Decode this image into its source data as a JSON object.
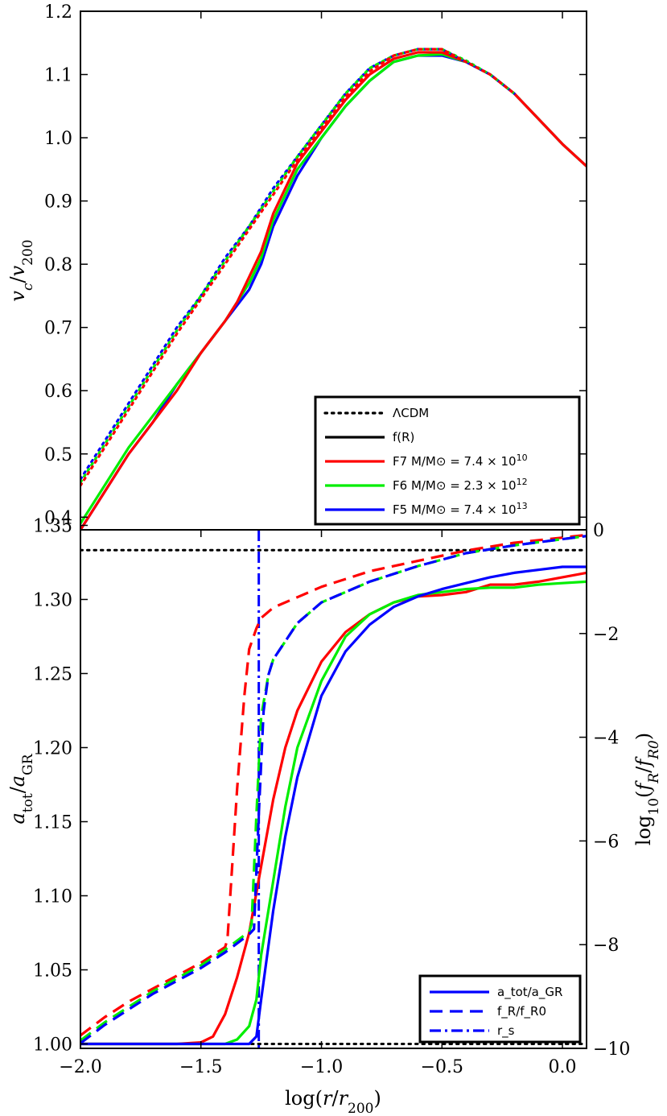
{
  "chart_data": [
    {
      "type": "line",
      "panel": "top",
      "ylabel": "v_c/v_200",
      "ylim": [
        0.38,
        1.2
      ],
      "xlim": [
        -2.0,
        0.1
      ],
      "yticks": [
        "0.4",
        "0.5",
        "0.6",
        "0.7",
        "0.8",
        "0.9",
        "1.0",
        "1.1",
        "1.2"
      ],
      "legend": {
        "position": "lower-right",
        "entries": [
          {
            "style": "dotted",
            "color": "#000000",
            "label": "ΛCDM"
          },
          {
            "style": "solid",
            "color": "#000000",
            "label": "f(R)"
          },
          {
            "style": "solid",
            "color": "#ff0000",
            "label": "F7 M/M⊙ = 7.4 × 10^10"
          },
          {
            "style": "solid",
            "color": "#00ee00",
            "label": "F6 M/M⊙ = 2.3 × 10^12"
          },
          {
            "style": "solid",
            "color": "#0000ff",
            "label": "F5 M/M⊙ = 7.4 × 10^13"
          }
        ]
      },
      "series": [
        {
          "name": "F5 f(R)",
          "color": "#0000ff",
          "dash": "solid",
          "x": [
            -2.0,
            -1.9,
            -1.8,
            -1.7,
            -1.6,
            -1.5,
            -1.4,
            -1.3,
            -1.25,
            -1.2,
            -1.1,
            -1.0,
            -0.9,
            -0.8,
            -0.7,
            -0.6,
            -0.5,
            -0.4,
            -0.3,
            -0.2,
            -0.1,
            0.0,
            0.1
          ],
          "y": [
            0.38,
            0.44,
            0.5,
            0.55,
            0.61,
            0.66,
            0.71,
            0.76,
            0.8,
            0.86,
            0.94,
            1.0,
            1.05,
            1.09,
            1.12,
            1.13,
            1.13,
            1.12,
            1.1,
            1.07,
            1.03,
            0.99,
            0.955
          ]
        },
        {
          "name": "F6 f(R)",
          "color": "#00ee00",
          "dash": "solid",
          "x": [
            -2.0,
            -1.9,
            -1.8,
            -1.7,
            -1.6,
            -1.5,
            -1.4,
            -1.3,
            -1.25,
            -1.2,
            -1.1,
            -1.0,
            -0.9,
            -0.8,
            -0.7,
            -0.6,
            -0.5,
            -0.4,
            -0.3,
            -0.2,
            -0.1,
            0.0,
            0.1
          ],
          "y": [
            0.39,
            0.45,
            0.51,
            0.56,
            0.61,
            0.66,
            0.71,
            0.77,
            0.81,
            0.87,
            0.95,
            1.0,
            1.05,
            1.09,
            1.12,
            1.13,
            1.132,
            1.12,
            1.1,
            1.07,
            1.03,
            0.99,
            0.955
          ]
        },
        {
          "name": "F7 f(R)",
          "color": "#ff0000",
          "dash": "solid",
          "x": [
            -2.0,
            -1.9,
            -1.8,
            -1.7,
            -1.6,
            -1.5,
            -1.4,
            -1.35,
            -1.3,
            -1.25,
            -1.2,
            -1.1,
            -1.0,
            -0.9,
            -0.8,
            -0.7,
            -0.6,
            -0.5,
            -0.4,
            -0.3,
            -0.2,
            -0.1,
            0.0,
            0.1
          ],
          "y": [
            0.38,
            0.44,
            0.5,
            0.55,
            0.6,
            0.66,
            0.71,
            0.74,
            0.78,
            0.82,
            0.88,
            0.96,
            1.01,
            1.06,
            1.1,
            1.125,
            1.135,
            1.135,
            1.12,
            1.1,
            1.07,
            1.03,
            0.99,
            0.955
          ]
        },
        {
          "name": "F5 ΛCDM",
          "color": "#0000ff",
          "dash": "dotted",
          "x": [
            -2.0,
            -1.9,
            -1.8,
            -1.7,
            -1.6,
            -1.5,
            -1.4,
            -1.3,
            -1.2,
            -1.1,
            -1.0,
            -0.9,
            -0.8,
            -0.7,
            -0.6,
            -0.5,
            -0.4,
            -0.3,
            -0.2
          ],
          "y": [
            0.46,
            0.52,
            0.58,
            0.64,
            0.7,
            0.75,
            0.81,
            0.86,
            0.92,
            0.97,
            1.02,
            1.07,
            1.11,
            1.13,
            1.14,
            1.14,
            1.12,
            1.1,
            1.07
          ]
        },
        {
          "name": "F6 ΛCDM",
          "color": "#00ee00",
          "dash": "dotted",
          "x": [
            -2.0,
            -1.9,
            -1.8,
            -1.7,
            -1.6,
            -1.5,
            -1.4,
            -1.3,
            -1.2,
            -1.1,
            -1.0,
            -0.9,
            -0.8,
            -0.7,
            -0.6,
            -0.5,
            -0.4,
            -0.3,
            -0.2
          ],
          "y": [
            0.455,
            0.515,
            0.575,
            0.635,
            0.695,
            0.75,
            0.805,
            0.86,
            0.915,
            0.97,
            1.02,
            1.07,
            1.11,
            1.13,
            1.14,
            1.14,
            1.122,
            1.1,
            1.07
          ]
        },
        {
          "name": "F7 ΛCDM",
          "color": "#ff0000",
          "dash": "dotted",
          "x": [
            -2.0,
            -1.9,
            -1.8,
            -1.7,
            -1.6,
            -1.5,
            -1.4,
            -1.3,
            -1.2,
            -1.1,
            -1.0,
            -0.9,
            -0.8,
            -0.7,
            -0.6,
            -0.5,
            -0.4,
            -0.3,
            -0.2
          ],
          "y": [
            0.45,
            0.51,
            0.57,
            0.63,
            0.69,
            0.745,
            0.8,
            0.855,
            0.91,
            0.965,
            1.015,
            1.065,
            1.105,
            1.13,
            1.14,
            1.14,
            1.12,
            1.1,
            1.07
          ]
        }
      ]
    },
    {
      "type": "line",
      "panel": "bottom",
      "xlabel": "log(r/r_200)",
      "ylabel": "a_tot/a_GR",
      "ylabel_right": "log10(f_R/f_R0)",
      "xlim": [
        -2.0,
        0.1
      ],
      "ylim": [
        0.997,
        1.347
      ],
      "ylim_right": [
        -10,
        0
      ],
      "xticks": [
        "−2.0",
        "−1.5",
        "−1.0",
        "−0.5",
        "0.0"
      ],
      "yticks": [
        "1.00",
        "1.05",
        "1.10",
        "1.15",
        "1.20",
        "1.25",
        "1.30",
        "1.35"
      ],
      "yticks_right": [
        "−10",
        "−8",
        "−6",
        "−4",
        "−2",
        "0"
      ],
      "legend": {
        "position": "lower-right",
        "entries": [
          {
            "style": "solid",
            "color": "#0000ff",
            "label": "a_tot/a_GR"
          },
          {
            "style": "dashed",
            "color": "#0000ff",
            "label": "f_R/f_R0"
          },
          {
            "style": "dashdot",
            "color": "#0000ff",
            "label": "r_s"
          }
        ]
      },
      "reference_lines": [
        {
          "axis": "y",
          "value": 1.0,
          "style": "dotted",
          "color": "#000000"
        },
        {
          "axis": "y",
          "value": 1.3333,
          "style": "dotted",
          "color": "#000000"
        },
        {
          "axis": "x",
          "value": -1.26,
          "style": "dashdot",
          "color": "#0000ff",
          "label": "r_s"
        }
      ],
      "series": [
        {
          "name": "F7 a_tot/a_GR",
          "color": "#ff0000",
          "dash": "solid",
          "axis": "left",
          "x": [
            -2.0,
            -1.6,
            -1.5,
            -1.45,
            -1.4,
            -1.35,
            -1.3,
            -1.25,
            -1.2,
            -1.15,
            -1.1,
            -1.0,
            -0.9,
            -0.8,
            -0.7,
            -0.6,
            -0.5,
            -0.4,
            -0.3,
            -0.2,
            -0.1,
            0.0,
            0.1
          ],
          "y": [
            1.0,
            1.0,
            1.001,
            1.005,
            1.02,
            1.045,
            1.075,
            1.12,
            1.165,
            1.2,
            1.225,
            1.258,
            1.278,
            1.29,
            1.298,
            1.302,
            1.303,
            1.305,
            1.31,
            1.31,
            1.312,
            1.315,
            1.318
          ]
        },
        {
          "name": "F6 a_tot/a_GR",
          "color": "#00ee00",
          "dash": "solid",
          "axis": "left",
          "x": [
            -2.0,
            -1.4,
            -1.35,
            -1.3,
            -1.27,
            -1.25,
            -1.2,
            -1.15,
            -1.1,
            -1.0,
            -0.9,
            -0.8,
            -0.7,
            -0.6,
            -0.5,
            -0.4,
            -0.3,
            -0.2,
            -0.1,
            0.0,
            0.1
          ],
          "y": [
            1.0,
            1.0,
            1.003,
            1.012,
            1.03,
            1.06,
            1.11,
            1.16,
            1.2,
            1.245,
            1.275,
            1.29,
            1.298,
            1.303,
            1.305,
            1.307,
            1.308,
            1.308,
            1.31,
            1.311,
            1.312
          ]
        },
        {
          "name": "F5 a_tot/a_GR",
          "color": "#0000ff",
          "dash": "solid",
          "axis": "left",
          "x": [
            -2.0,
            -1.3,
            -1.27,
            -1.25,
            -1.2,
            -1.15,
            -1.1,
            -1.0,
            -0.9,
            -0.8,
            -0.7,
            -0.6,
            -0.5,
            -0.4,
            -0.3,
            -0.2,
            -0.1,
            0.0,
            0.1
          ],
          "y": [
            1.0,
            1.0,
            1.005,
            1.03,
            1.09,
            1.14,
            1.18,
            1.235,
            1.265,
            1.283,
            1.295,
            1.302,
            1.307,
            1.311,
            1.315,
            1.318,
            1.32,
            1.322,
            1.322
          ]
        },
        {
          "name": "F7 f_R/f_R0",
          "color": "#ff0000",
          "dash": "dashed",
          "axis": "right",
          "x": [
            -2.0,
            -1.9,
            -1.8,
            -1.7,
            -1.6,
            -1.5,
            -1.4,
            -1.39,
            -1.35,
            -1.32,
            -1.3,
            -1.27,
            -1.25,
            -1.2,
            -1.1,
            -1.0,
            -0.8,
            -0.6,
            -0.4,
            -0.2,
            0.0,
            0.1
          ],
          "y": [
            -9.75,
            -9.4,
            -9.1,
            -8.85,
            -8.6,
            -8.35,
            -8.05,
            -7.9,
            -5.0,
            -3.2,
            -2.3,
            -1.9,
            -1.7,
            -1.5,
            -1.3,
            -1.1,
            -0.8,
            -0.6,
            -0.4,
            -0.25,
            -0.15,
            -0.1
          ]
        },
        {
          "name": "F6 f_R/f_R0",
          "color": "#00ee00",
          "dash": "dashed",
          "axis": "right",
          "x": [
            -2.0,
            -1.9,
            -1.8,
            -1.7,
            -1.6,
            -1.5,
            -1.4,
            -1.3,
            -1.29,
            -1.27,
            -1.25,
            -1.22,
            -1.2,
            -1.1,
            -1.0,
            -0.8,
            -0.6,
            -0.4,
            -0.2,
            0.0,
            0.1
          ],
          "y": [
            -9.85,
            -9.5,
            -9.2,
            -8.9,
            -8.65,
            -8.4,
            -8.1,
            -7.75,
            -7.6,
            -5.5,
            -3.6,
            -2.8,
            -2.5,
            -1.8,
            -1.4,
            -1.0,
            -0.7,
            -0.45,
            -0.3,
            -0.18,
            -0.12
          ]
        },
        {
          "name": "F5 f_R/f_R0",
          "color": "#0000ff",
          "dash": "dashed",
          "axis": "right",
          "x": [
            -2.0,
            -1.9,
            -1.8,
            -1.7,
            -1.6,
            -1.5,
            -1.4,
            -1.3,
            -1.28,
            -1.26,
            -1.24,
            -1.22,
            -1.2,
            -1.1,
            -1.0,
            -0.8,
            -0.6,
            -0.4,
            -0.2,
            0.0,
            0.1
          ],
          "y": [
            -9.9,
            -9.55,
            -9.25,
            -8.95,
            -8.7,
            -8.45,
            -8.15,
            -7.8,
            -7.7,
            -5.5,
            -3.5,
            -2.8,
            -2.5,
            -1.8,
            -1.4,
            -1.0,
            -0.7,
            -0.45,
            -0.3,
            -0.18,
            -0.12
          ]
        }
      ]
    }
  ]
}
